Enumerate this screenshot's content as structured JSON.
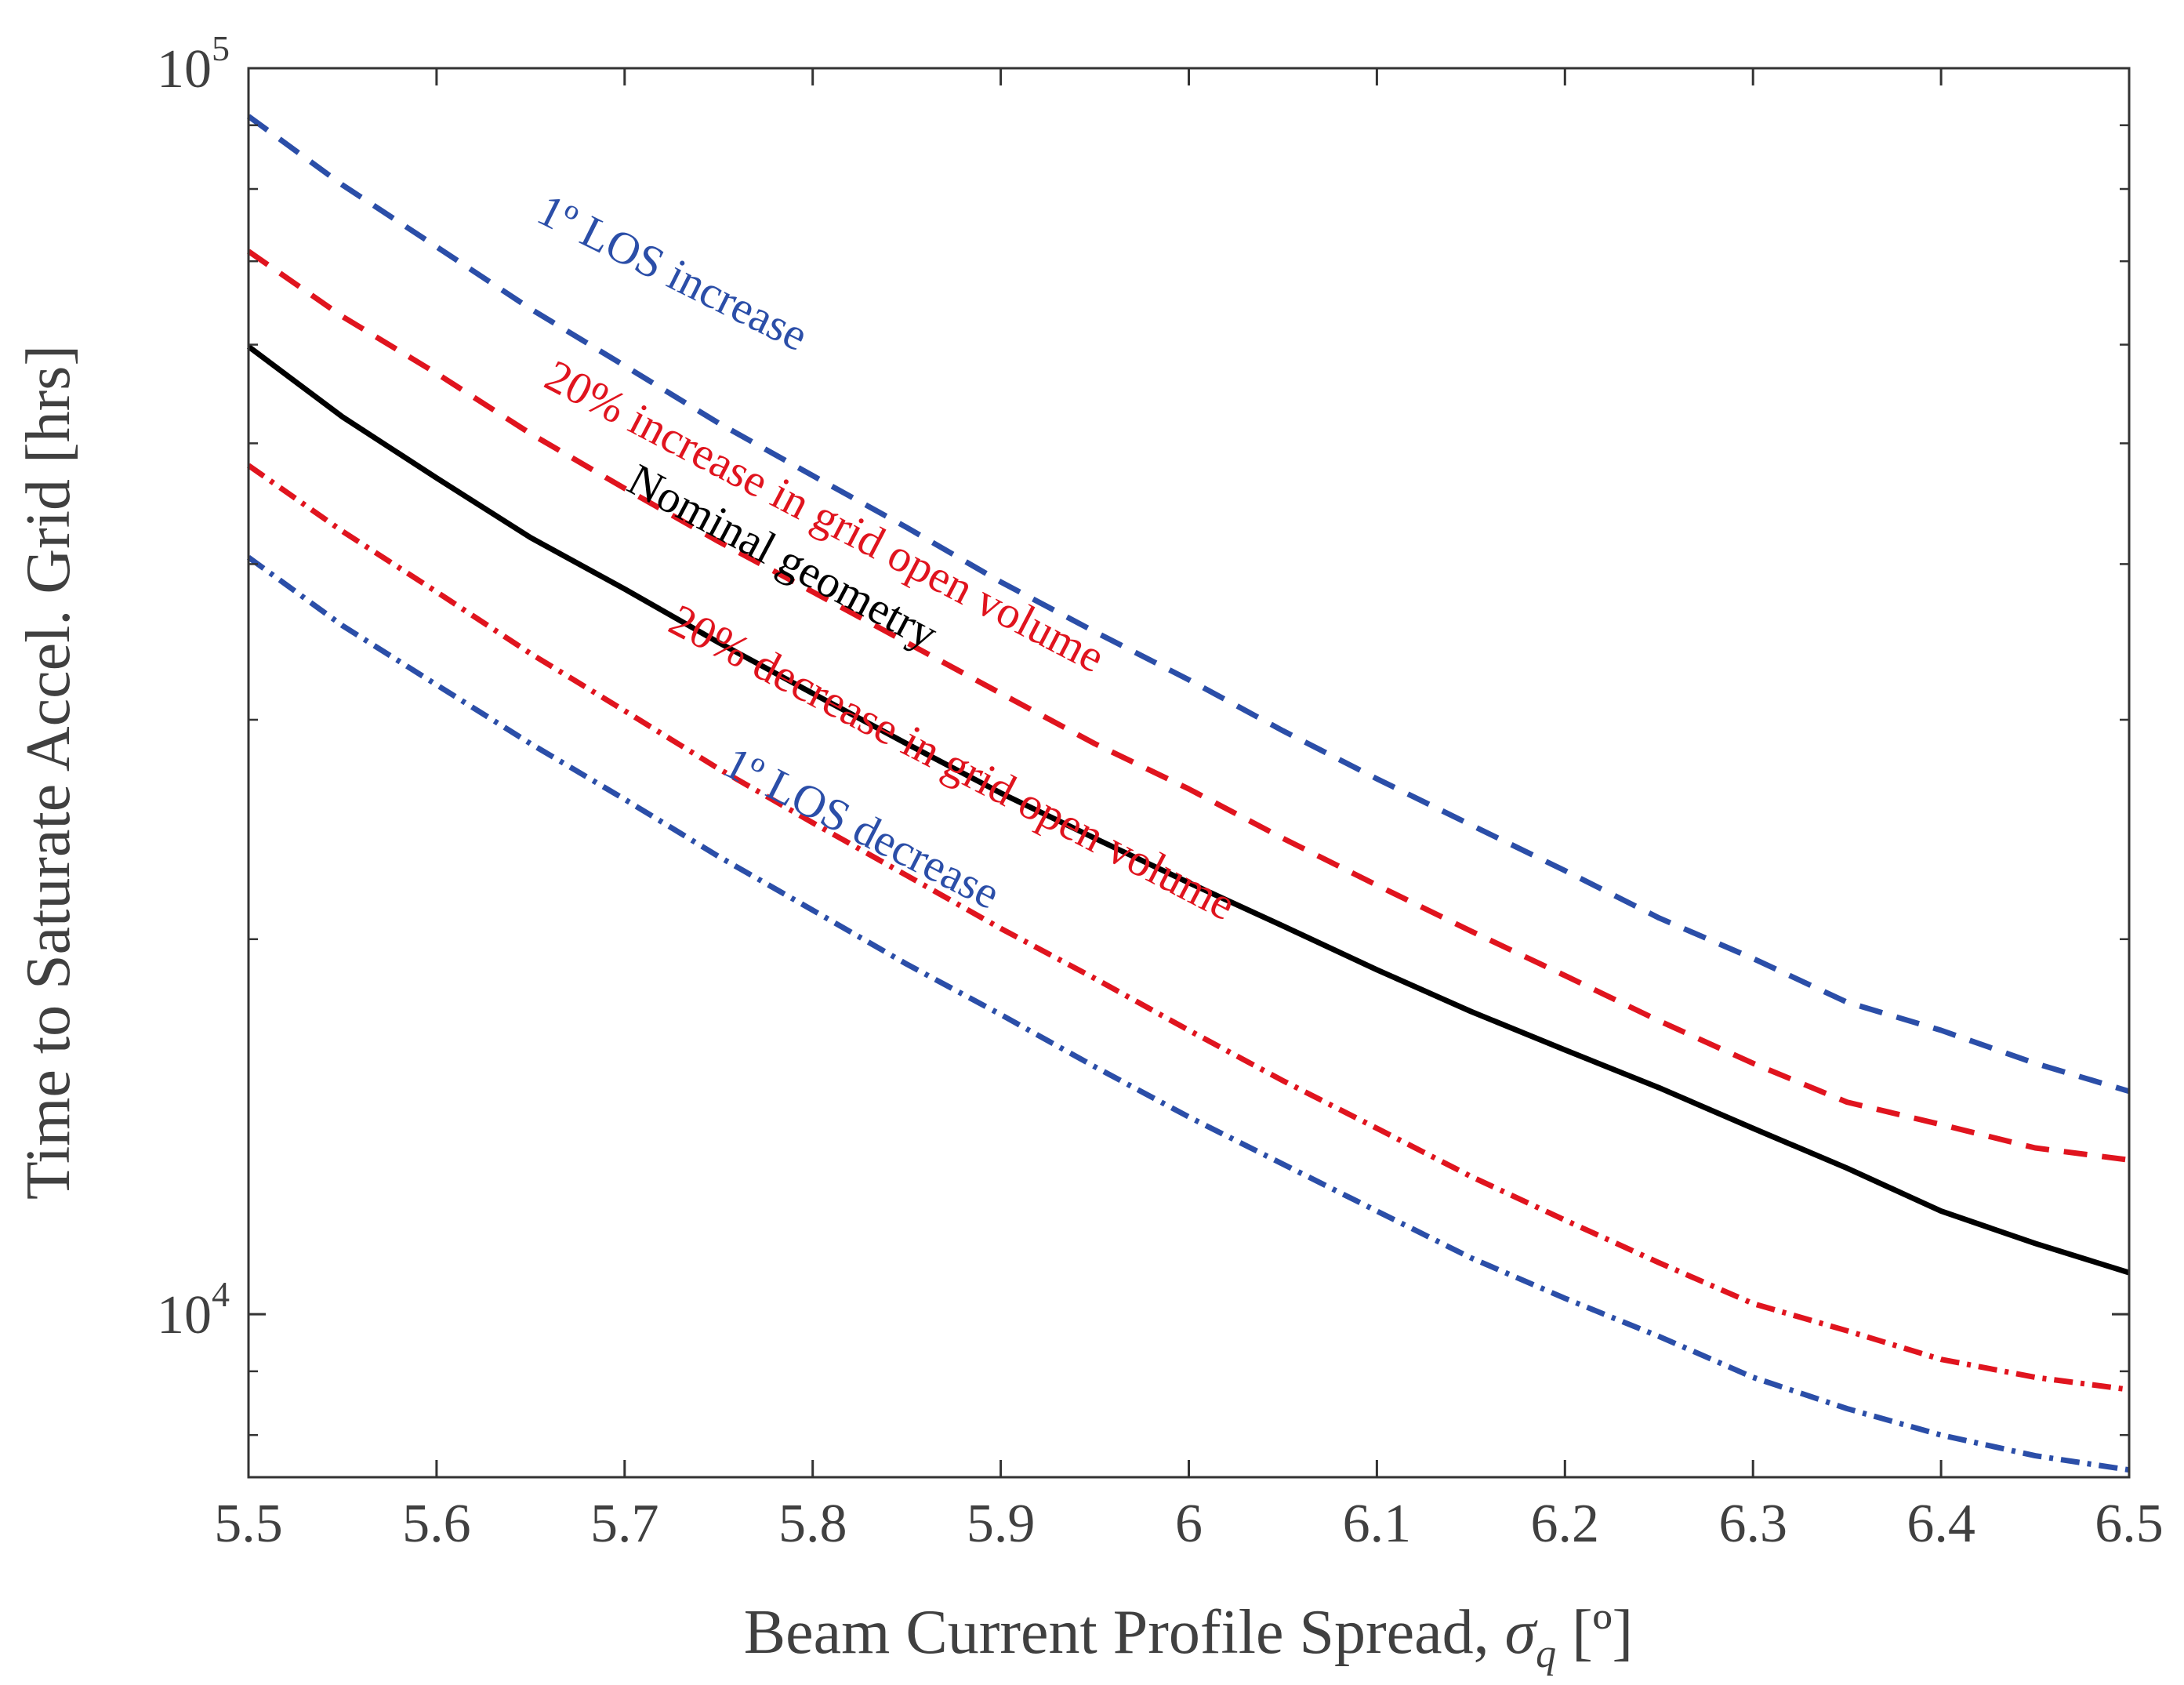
{
  "chart_data": {
    "type": "line",
    "title": "",
    "xlabel": "Beam Current Profile Spread, ",
    "xlabel_symbol": "σ",
    "xlabel_subscript": "q",
    "xlabel_unit": " [º]",
    "ylabel": "Time to Saturate Accel. Grid [hrs]",
    "xlim": [
      5.5,
      6.5
    ],
    "ylim": [
      7400,
      100000
    ],
    "yscale": "log",
    "grid": false,
    "x_ticks": [
      5.5,
      5.6,
      5.7,
      5.8,
      5.9,
      6.0,
      6.1,
      6.2,
      6.3,
      6.4,
      6.5
    ],
    "x_tick_labels": [
      "5.5",
      "5.6",
      "5.7",
      "5.8",
      "5.9",
      "6",
      "6.1",
      "6.2",
      "6.3",
      "6.4",
      "6.5"
    ],
    "y_major_ticks": [
      {
        "value": 100000,
        "base": "10",
        "exp": "5"
      },
      {
        "value": 10000,
        "base": "10",
        "exp": "4"
      }
    ],
    "y_minor_ticks": [
      8000,
      9000,
      20000,
      30000,
      40000,
      50000,
      60000,
      70000,
      80000,
      90000
    ],
    "x": [
      5.5,
      5.55,
      5.6,
      5.65,
      5.7,
      5.75,
      5.8,
      5.85,
      5.9,
      5.95,
      6.0,
      6.05,
      6.1,
      6.15,
      6.2,
      6.25,
      6.3,
      6.35,
      6.4,
      6.45,
      6.5
    ],
    "series": [
      {
        "name": "1º LOS increase",
        "color": "#2b4ea8",
        "dash": "dashed",
        "values": [
          91500,
          80600,
          71900,
          64100,
          57700,
          51900,
          47100,
          42800,
          38700,
          35300,
          32300,
          29400,
          26900,
          24700,
          22700,
          20800,
          19300,
          17800,
          16900,
          15900,
          15100
        ]
      },
      {
        "name": "20% increase in grid open volume",
        "color": "#e0141e",
        "dash": "dashed",
        "values": [
          71300,
          63200,
          56900,
          50900,
          46000,
          41700,
          38000,
          34600,
          31500,
          28700,
          26400,
          24100,
          22100,
          20300,
          18700,
          17200,
          15900,
          14800,
          14200,
          13600,
          13300
        ]
      },
      {
        "name": "Nominal geometry",
        "color": "#000000",
        "dash": "solid",
        "values": [
          59800,
          52500,
          46900,
          42000,
          38200,
          34600,
          31500,
          28700,
          26200,
          24100,
          22200,
          20500,
          18900,
          17500,
          16300,
          15200,
          14100,
          13100,
          12100,
          11400,
          10800
        ]
      },
      {
        "name": "20% decrease in grid open volume",
        "color": "#e0141e",
        "dash": "dashdot",
        "values": [
          48000,
          42500,
          38000,
          33900,
          30500,
          27400,
          24800,
          22500,
          20400,
          18600,
          16900,
          15400,
          14100,
          12900,
          11900,
          11000,
          10200,
          9700,
          9200,
          8900,
          8700
        ]
      },
      {
        "name": "1º LOS decrease",
        "color": "#2b4ea8",
        "dash": "dashdot",
        "values": [
          40500,
          35700,
          32000,
          28700,
          25900,
          23300,
          21100,
          19100,
          17400,
          15800,
          14400,
          13200,
          12100,
          11100,
          10300,
          9600,
          8900,
          8400,
          8000,
          7700,
          7500
        ]
      }
    ],
    "annotations": [
      {
        "text": "1º LOS increase",
        "color": "#2b4ea8"
      },
      {
        "text": "20% increase in grid open volume",
        "color": "#e0141e"
      },
      {
        "text": "Nominal geometry",
        "color": "#000000"
      },
      {
        "text": "20% decrease in grid open volume",
        "color": "#e0141e"
      },
      {
        "text": "1º LOS decrease",
        "color": "#2b4ea8"
      }
    ]
  }
}
